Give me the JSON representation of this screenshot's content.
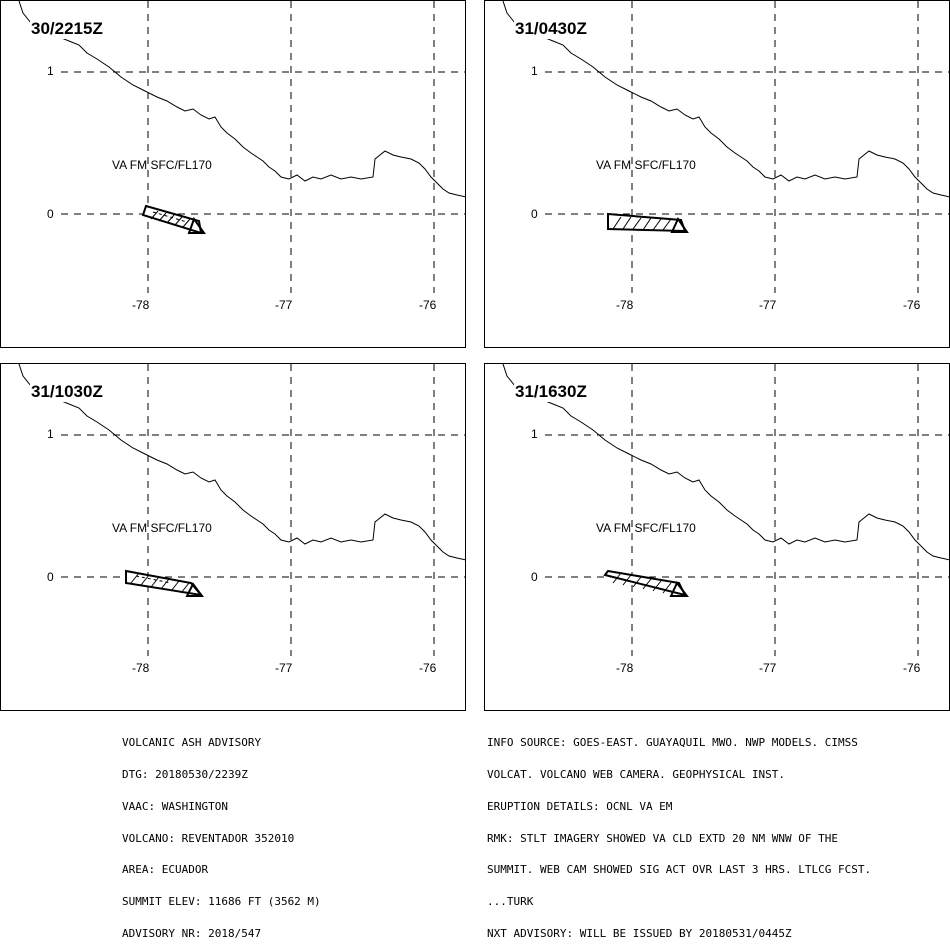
{
  "panels": [
    {
      "time": "30/2215Z",
      "label": "VA FM SFC/FL170",
      "shape": "up"
    },
    {
      "time": "31/0430Z",
      "label": "VA FM SFC/FL170",
      "shape": "flat"
    },
    {
      "time": "31/1030Z",
      "label": "VA FM SFC/FL170",
      "shape": "mid"
    },
    {
      "time": "31/1630Z",
      "label": "VA FM SFC/FL170",
      "shape": "up2"
    }
  ],
  "y_ticks": [
    "1",
    "0"
  ],
  "x_ticks": [
    "-78",
    "-77",
    "-76"
  ],
  "advisory_left": [
    "VOLCANIC ASH ADVISORY",
    "DTG: 20180530/2239Z",
    "VAAC: WASHINGTON",
    "VOLCANO: REVENTADOR 352010",
    "AREA: ECUADOR",
    "SUMMIT ELEV: 11686 FT (3562 M)",
    "ADVISORY NR: 2018/547"
  ],
  "advisory_right": [
    "INFO SOURCE: GOES-EAST. GUAYAQUIL MWO. NWP MODELS. CIMSS",
    "VOLCAT. VOLCANO WEB CAMERA. GEOPHYSICAL INST.",
    "ERUPTION DETAILS: OCNL VA EM",
    "RMK: STLT IMAGERY SHOWED VA CLD EXTD 20 NM WNW OF THE",
    "SUMMIT. WEB CAM SHOWED SIG ACT OVR LAST 3 HRS. LTLCG FCST.",
    "...TURK",
    "NXT ADVISORY: WILL BE ISSUED BY 20180531/0445Z"
  ],
  "colors": {
    "line": "#000000",
    "background": "#ffffff"
  }
}
